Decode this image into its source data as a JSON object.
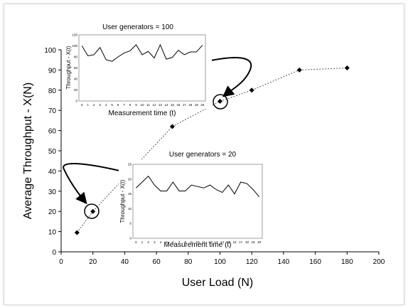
{
  "chart_data": [
    {
      "type": "scatter",
      "xlabel": "User Load (N)",
      "ylabel": "Average Throughput - X(N)",
      "xlim": [
        0,
        200
      ],
      "ylim": [
        0,
        100
      ],
      "xticks": [
        0,
        20,
        40,
        60,
        80,
        100,
        120,
        140,
        160,
        180,
        200
      ],
      "yticks": [
        0,
        10,
        20,
        30,
        40,
        50,
        60,
        70,
        80,
        90,
        100
      ],
      "x": [
        10,
        20,
        70,
        100,
        120,
        150,
        180
      ],
      "y": [
        9.5,
        20,
        62,
        74.5,
        80,
        90,
        91
      ],
      "grid": false,
      "annotations": [
        {
          "text": "User generators = 100",
          "points_to": {
            "x": 100,
            "y": 74.5
          }
        },
        {
          "text": "User generators = 20",
          "points_to": {
            "x": 20,
            "y": 20
          }
        }
      ]
    },
    {
      "type": "line",
      "title": "User generators = 100",
      "xlabel": "Measurement time (t)",
      "ylabel": "Throughput - X(t)",
      "x": [
        0,
        1,
        2,
        3,
        4,
        5,
        6,
        7,
        8,
        9,
        10,
        11,
        12,
        13,
        14,
        15,
        16,
        17,
        18,
        19,
        20
      ],
      "xticks": [
        0,
        1,
        2,
        3,
        4,
        5,
        6,
        7,
        8,
        9,
        10,
        11,
        12,
        13,
        14,
        15,
        16,
        17,
        18,
        19,
        20
      ],
      "ylim": [
        0,
        120
      ],
      "yticks": [
        0,
        20,
        40,
        60,
        80,
        100,
        120
      ],
      "values": [
        100,
        82,
        84,
        97,
        75,
        72,
        80,
        87,
        91,
        102,
        84,
        90,
        78,
        102,
        76,
        79,
        92,
        84,
        89,
        89,
        101
      ]
    },
    {
      "type": "line",
      "title": "User generators = 20",
      "xlabel": "Measurement time (t)",
      "ylabel": "Throughput - X(t)",
      "x": [
        0,
        1,
        2,
        3,
        4,
        5,
        6,
        7,
        8,
        9,
        10,
        11,
        12,
        13,
        14,
        15,
        16,
        17,
        18,
        19,
        20
      ],
      "xticks": [
        0,
        1,
        2,
        3,
        4,
        5,
        6,
        7,
        8,
        9,
        10,
        11,
        12,
        13,
        14,
        15,
        16,
        17,
        18,
        19,
        20
      ],
      "ylim": [
        0,
        25
      ],
      "yticks": [
        0,
        5,
        10,
        15,
        20,
        25
      ],
      "values": [
        17,
        19,
        21,
        18,
        16,
        16,
        19,
        16,
        16,
        18,
        17.5,
        17,
        18,
        16.5,
        15.5,
        18,
        15,
        19,
        18.5,
        16.5,
        14
      ]
    }
  ]
}
